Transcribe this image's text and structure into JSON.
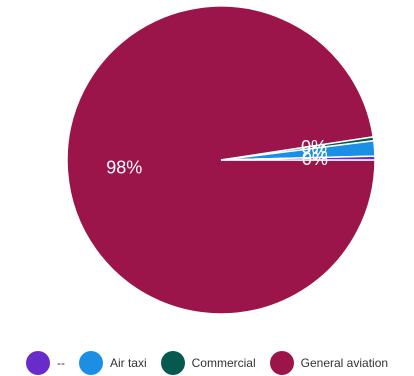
{
  "chart_data": {
    "type": "pie",
    "slices": [
      {
        "label": "General aviation",
        "value": 97.6,
        "color": "#9B154B",
        "data_label": "98%"
      },
      {
        "label": "Commercial",
        "value": 0.4,
        "color": "#07584F",
        "data_label": "0%"
      },
      {
        "label": "Air taxi",
        "value": 1.6,
        "color": "#1A8FE3",
        "data_label": "2%"
      },
      {
        "label": "--",
        "value": 0.4,
        "color": "#6A2BCB",
        "data_label": "0%"
      }
    ],
    "legend_order": [
      "--",
      "Air taxi",
      "Commercial",
      "General aviation"
    ],
    "legend_position": "bottom"
  }
}
